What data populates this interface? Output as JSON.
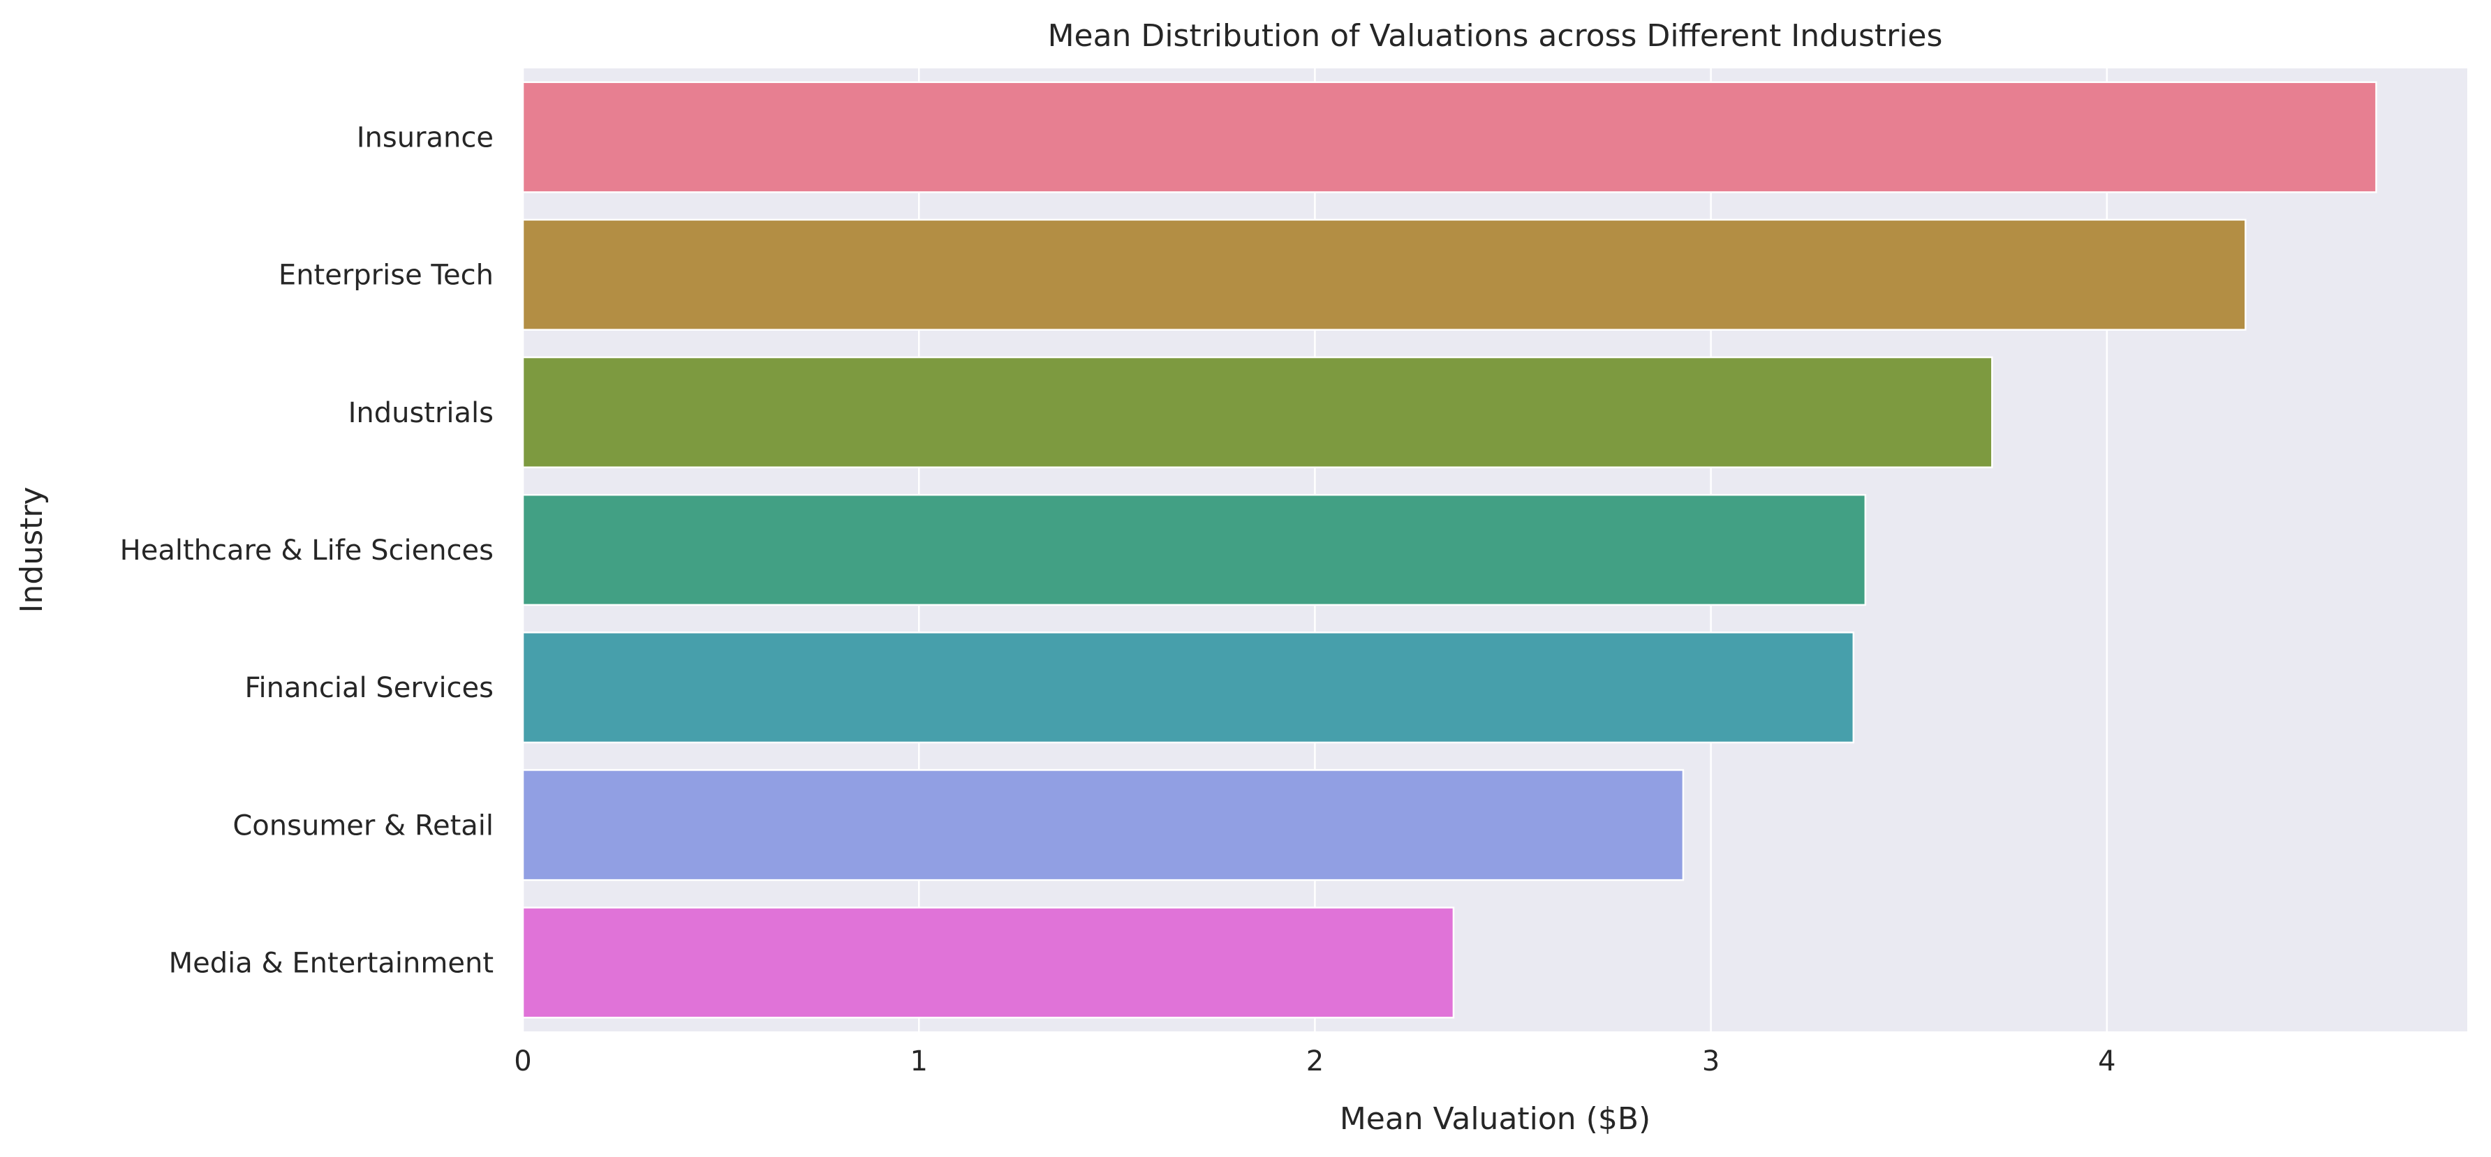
{
  "chart_data": {
    "type": "bar",
    "orientation": "horizontal",
    "title": "Mean Distribution of Valuations across Different Industries",
    "xlabel": "Mean Valuation ($B)",
    "ylabel": "Industry",
    "categories": [
      "Insurance",
      "Enterprise Tech",
      "Industrials",
      "Healthcare & Life Sciences",
      "Financial Services",
      "Consumer & Retail",
      "Media & Entertainment"
    ],
    "values": [
      4.68,
      4.35,
      3.71,
      3.39,
      3.36,
      2.93,
      2.35
    ],
    "colors": [
      "#e77f91",
      "#b38e44",
      "#7d9a40",
      "#42a084",
      "#479fab",
      "#919fe3",
      "#e073d8"
    ],
    "xlim": [
      0,
      4.91
    ],
    "xticks": [
      "0",
      "1",
      "2",
      "3",
      "4"
    ],
    "grid": true,
    "background": "#eaeaf2",
    "grid_color": "#ffffff"
  }
}
